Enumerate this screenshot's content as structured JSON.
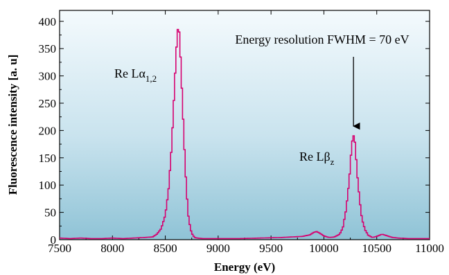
{
  "chart_data": {
    "type": "line",
    "xlabel": "Energy (eV)",
    "ylabel": "Fluorescence intensity [a. u]",
    "xlim": [
      7500,
      11000
    ],
    "ylim": [
      0,
      420
    ],
    "xticks": [
      "7500",
      "8000",
      "8500",
      "9000",
      "9500",
      "10000",
      "10500",
      "11000"
    ],
    "yticks": [
      "0",
      "50",
      "100",
      "150",
      "200",
      "250",
      "300",
      "350",
      "400"
    ],
    "grid": false,
    "background": "light-blue gradient",
    "series": [
      {
        "color": "#d6006f",
        "x": [
          7500,
          7600,
          7700,
          7800,
          7900,
          8000,
          8100,
          8200,
          8300,
          8380,
          8420,
          8460,
          8500,
          8530,
          8560,
          8580,
          8600,
          8615,
          8630,
          8645,
          8660,
          8680,
          8700,
          8720,
          8740,
          8760,
          8780,
          8800,
          8850,
          8900,
          9000,
          9200,
          9400,
          9600,
          9800,
          9870,
          9900,
          9930,
          9960,
          10000,
          10050,
          10100,
          10150,
          10180,
          10210,
          10240,
          10260,
          10275,
          10290,
          10305,
          10320,
          10340,
          10360,
          10390,
          10420,
          10460,
          10500,
          10550,
          10600,
          10650,
          10700,
          10800,
          10900,
          11000
        ],
        "y": [
          3,
          2,
          3,
          2,
          2,
          3,
          2,
          3,
          4,
          5,
          10,
          20,
          45,
          90,
          170,
          250,
          330,
          385,
          385,
          330,
          260,
          170,
          90,
          40,
          18,
          8,
          4,
          3,
          2,
          2,
          2,
          2,
          3,
          4,
          6,
          9,
          13,
          15,
          12,
          7,
          4,
          5,
          10,
          22,
          55,
          110,
          165,
          192,
          188,
          150,
          110,
          70,
          38,
          18,
          8,
          4,
          6,
          10,
          7,
          4,
          3,
          2,
          2,
          2
        ]
      }
    ],
    "annotations": {
      "peak1": {
        "label": "Re Lα",
        "sub": "1,2",
        "x": 8620,
        "y": 385
      },
      "peak2": {
        "label": "Re Lβ",
        "sub": "z",
        "x": 10280,
        "y": 192
      },
      "resolution": {
        "text": "Energy resolution FWHM = 70 eV",
        "arrow_x": 10280,
        "arrow_from_y": 335,
        "arrow_to_y": 208
      }
    }
  }
}
